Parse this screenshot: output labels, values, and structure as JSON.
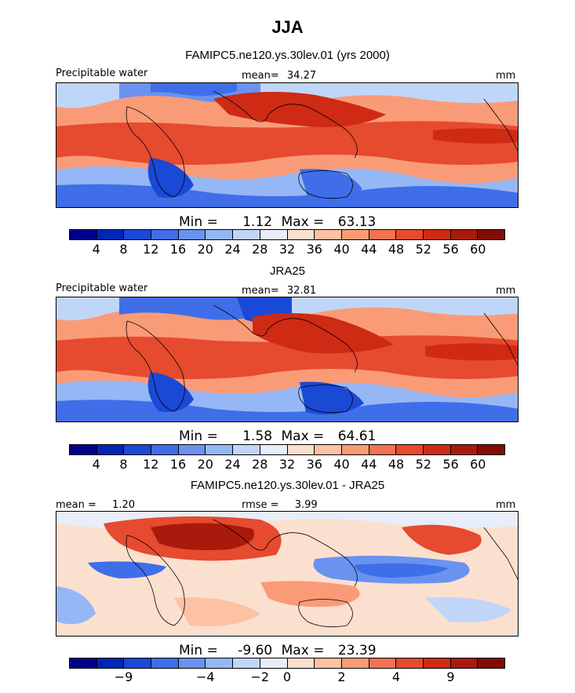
{
  "figure": {
    "title": "JJA"
  },
  "chart_data": [
    {
      "type": "heatmap",
      "title": "FAMIPC5.ne120.ys.30lev.01 (yrs 2000)",
      "left_label": "Precipitable water",
      "center_label": "mean=",
      "center_value": "34.27",
      "right_label": "mm",
      "min_label": "Min =",
      "min_value": "1.12",
      "max_label": "Max =",
      "max_value": "63.13",
      "colorbar": {
        "colors": [
          "#00008c",
          "#0026b4",
          "#1a49d6",
          "#3f6ee8",
          "#6a92f0",
          "#96b7f5",
          "#c0d6f8",
          "#e7eef9",
          "#fbe0cf",
          "#fdc1a4",
          "#fa9b77",
          "#f27352",
          "#e64a2f",
          "#cf2a14",
          "#aa1a0c",
          "#830c06"
        ],
        "tick_labels": [
          "4",
          "8",
          "12",
          "16",
          "20",
          "24",
          "28",
          "32",
          "36",
          "40",
          "44",
          "48",
          "52",
          "56",
          "60"
        ]
      }
    },
    {
      "type": "heatmap",
      "title": "JRA25",
      "left_label": "Precipitable water",
      "center_label": "mean=",
      "center_value": "32.81",
      "right_label": "mm",
      "min_label": "Min =",
      "min_value": "1.58",
      "max_label": "Max =",
      "max_value": "64.61",
      "colorbar": {
        "colors": [
          "#00008c",
          "#0026b4",
          "#1a49d6",
          "#3f6ee8",
          "#6a92f0",
          "#96b7f5",
          "#c0d6f8",
          "#e7eef9",
          "#fbe0cf",
          "#fdc1a4",
          "#fa9b77",
          "#f27352",
          "#e64a2f",
          "#cf2a14",
          "#aa1a0c",
          "#830c06"
        ],
        "tick_labels": [
          "4",
          "8",
          "12",
          "16",
          "20",
          "24",
          "28",
          "32",
          "36",
          "40",
          "44",
          "48",
          "52",
          "56",
          "60"
        ]
      }
    },
    {
      "type": "heatmap",
      "title": "FAMIPC5.ne120.ys.30lev.01 - JRA25",
      "left_label": "mean =",
      "left_value": "1.20",
      "center_label": "rmse =",
      "center_value": "3.99",
      "right_label": "mm",
      "min_label": "Min =",
      "min_value": "-9.60",
      "max_label": "Max =",
      "max_value": "23.39",
      "colorbar": {
        "colors": [
          "#00008c",
          "#0026b4",
          "#1a49d6",
          "#3f6ee8",
          "#6a92f0",
          "#96b7f5",
          "#c0d6f8",
          "#e7eef9",
          "#fbe0cf",
          "#fdc1a4",
          "#fa9b77",
          "#f27352",
          "#e64a2f",
          "#cf2a14",
          "#aa1a0c",
          "#830c06"
        ],
        "tick_labels": [
          "−9",
          "−4",
          "−2",
          "0",
          "2",
          "4",
          "9"
        ]
      }
    }
  ]
}
